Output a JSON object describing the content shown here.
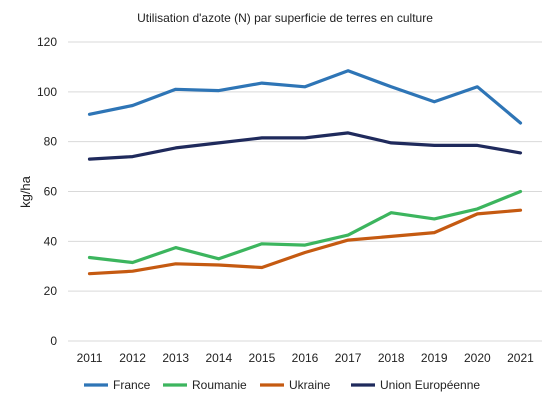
{
  "chart_data": {
    "type": "line",
    "title": "Utilisation d'azote (N) par superficie de terres en culture",
    "xlabel": "",
    "ylabel": "kg/ha",
    "ylim": [
      0,
      120
    ],
    "yticks": [
      0,
      20,
      40,
      60,
      80,
      100,
      120
    ],
    "grid": true,
    "legend_position": "bottom",
    "categories": [
      "2011",
      "2012",
      "2013",
      "2014",
      "2015",
      "2016",
      "2017",
      "2018",
      "2019",
      "2020",
      "2021"
    ],
    "series": [
      {
        "name": "France",
        "color": "#2E75B6",
        "values": [
          91,
          94.5,
          101,
          100.5,
          103.5,
          102,
          108.5,
          102,
          96,
          102,
          87.5
        ]
      },
      {
        "name": "Roumanie",
        "color": "#3CB55E",
        "values": [
          33.5,
          31.5,
          37.5,
          33,
          39,
          38.5,
          42.5,
          51.5,
          49,
          53,
          60
        ]
      },
      {
        "name": "Ukraine",
        "color": "#C55A11",
        "values": [
          27,
          28,
          31,
          30.5,
          29.5,
          35.5,
          40.5,
          42,
          43.5,
          51,
          52.5
        ]
      },
      {
        "name": "Union Européenne",
        "color": "#1F2A5C",
        "values": [
          73,
          74,
          77.5,
          79.5,
          81.5,
          81.5,
          83.5,
          79.5,
          78.5,
          78.5,
          75.5
        ]
      }
    ]
  }
}
